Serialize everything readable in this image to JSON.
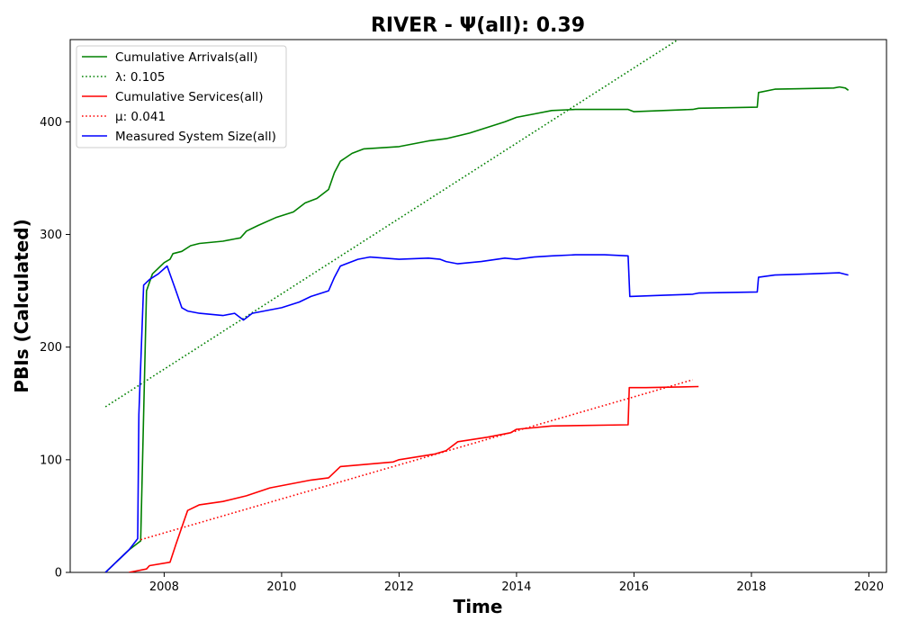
{
  "chart_data": {
    "type": "line",
    "title": "RIVER -  Ψ(all): 0.39",
    "xlabel": "Time",
    "ylabel": "PBIs (Calculated)",
    "xlim": [
      2006.4,
      2020.3
    ],
    "ylim": [
      0,
      473
    ],
    "x_ticks": [
      2008,
      2010,
      2012,
      2014,
      2016,
      2018,
      2020
    ],
    "y_ticks": [
      0,
      100,
      200,
      300,
      400
    ],
    "grid": false,
    "legend_position": "top-left",
    "series": [
      {
        "name": "Cumulative Arrivals(all)",
        "color": "#008000",
        "style": "solid",
        "x": [
          2007.0,
          2007.2,
          2007.4,
          2007.6,
          2007.7,
          2007.8,
          2007.9,
          2008.0,
          2008.1,
          2008.15,
          2008.3,
          2008.45,
          2008.6,
          2009.0,
          2009.2,
          2009.3,
          2009.4,
          2009.6,
          2009.9,
          2010.2,
          2010.4,
          2010.6,
          2010.8,
          2010.9,
          2011.0,
          2011.2,
          2011.4,
          2011.7,
          2012.0,
          2012.5,
          2012.8,
          2013.2,
          2013.5,
          2013.8,
          2014.0,
          2014.3,
          2014.6,
          2015.0,
          2015.5,
          2015.9,
          2016.0,
          2016.5,
          2017.0,
          2017.1,
          2018.1,
          2018.12,
          2018.4,
          2019.4,
          2019.5,
          2019.6,
          2019.65
        ],
        "y": [
          0,
          10,
          20,
          28,
          250,
          265,
          270,
          275,
          278,
          283,
          285,
          290,
          292,
          294,
          296,
          297,
          303,
          308,
          315,
          320,
          328,
          332,
          340,
          355,
          365,
          372,
          376,
          377,
          378,
          383,
          385,
          390,
          395,
          400,
          404,
          407,
          410,
          411,
          411,
          411,
          409,
          410,
          411,
          412,
          413,
          426,
          429,
          430,
          431,
          430,
          428
        ]
      },
      {
        "name": "λ: 0.105",
        "color": "#008000",
        "style": "dotted",
        "x": [
          2007.0,
          2016.75
        ],
        "y": [
          147,
          473
        ]
      },
      {
        "name": "Cumulative Services(all)",
        "color": "#ff0000",
        "style": "solid",
        "x": [
          2007.4,
          2007.7,
          2007.75,
          2008.1,
          2008.2,
          2008.3,
          2008.4,
          2008.6,
          2009.0,
          2009.4,
          2009.8,
          2010.5,
          2010.8,
          2011.0,
          2011.9,
          2012.0,
          2012.6,
          2012.8,
          2013.0,
          2013.5,
          2013.9,
          2014.0,
          2014.6,
          2015.9,
          2015.92,
          2016.2,
          2017.1
        ],
        "y": [
          0,
          3,
          6,
          9,
          25,
          40,
          55,
          60,
          63,
          68,
          75,
          82,
          84,
          94,
          98,
          100,
          105,
          108,
          116,
          120,
          124,
          127,
          130,
          131,
          164,
          164,
          165
        ]
      },
      {
        "name": "μ: 0.041",
        "color": "#ff0000",
        "style": "dotted",
        "x": [
          2007.6,
          2017.0
        ],
        "y": [
          29,
          171
        ]
      },
      {
        "name": "Measured System Size(all)",
        "color": "#0000ff",
        "style": "solid",
        "x": [
          2007.0,
          2007.2,
          2007.4,
          2007.55,
          2007.57,
          2007.65,
          2007.75,
          2007.9,
          2008.05,
          2008.2,
          2008.3,
          2008.4,
          2008.6,
          2009.0,
          2009.2,
          2009.35,
          2009.5,
          2009.7,
          2010.0,
          2010.3,
          2010.5,
          2010.8,
          2010.9,
          2011.0,
          2011.3,
          2011.5,
          2012.0,
          2012.5,
          2012.7,
          2012.8,
          2013.0,
          2013.4,
          2013.8,
          2014.0,
          2014.3,
          2014.6,
          2015.0,
          2015.5,
          2015.9,
          2015.93,
          2016.5,
          2017.0,
          2017.1,
          2018.1,
          2018.12,
          2018.4,
          2019.0,
          2019.5,
          2019.65
        ],
        "y": [
          0,
          10,
          20,
          30,
          140,
          255,
          260,
          265,
          272,
          250,
          235,
          232,
          230,
          228,
          230,
          224,
          230,
          232,
          235,
          240,
          245,
          250,
          262,
          272,
          278,
          280,
          278,
          279,
          278,
          276,
          274,
          276,
          279,
          278,
          280,
          281,
          282,
          282,
          281,
          245,
          246,
          247,
          248,
          249,
          262,
          264,
          265,
          266,
          264
        ]
      }
    ]
  }
}
